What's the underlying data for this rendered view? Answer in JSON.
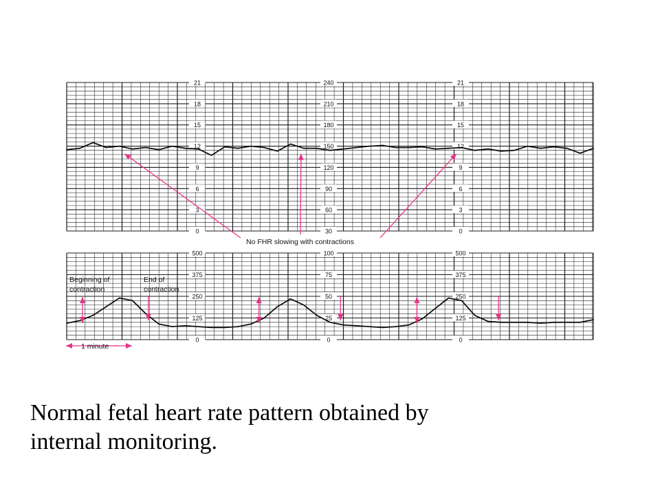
{
  "caption": {
    "line1": "Normal fetal heart rate pattern obtained by",
    "line2": "internal monitoring."
  },
  "chart_data": [
    {
      "type": "line",
      "panel": "fetal-heart-rate",
      "ylim": [
        30,
        240
      ],
      "scales": [
        {
          "name": "left",
          "ticks": [
            "21",
            "18",
            "15",
            "12",
            "9",
            "6",
            "3",
            "0"
          ]
        },
        {
          "name": "center",
          "ticks": [
            "240",
            "210",
            "180",
            "150",
            "120",
            "90",
            "60",
            "30"
          ]
        },
        {
          "name": "right",
          "ticks": [
            "21",
            "18",
            "15",
            "12",
            "9",
            "6",
            "3",
            "0"
          ]
        }
      ],
      "series": [
        {
          "x": [
            0,
            0.5,
            1,
            1.5,
            2,
            2.5,
            3,
            3.5,
            4,
            4.5,
            5,
            5.5,
            6,
            6.5,
            7,
            7.5,
            8,
            8.5,
            9,
            9.5,
            10,
            10.5,
            11,
            11.5,
            12,
            12.5,
            13,
            13.5,
            14,
            14.5,
            15,
            15.5,
            16,
            16.5,
            17,
            17.5,
            18,
            18.5,
            19,
            19.5,
            20
          ],
          "y": [
            145,
            147,
            155,
            148,
            150,
            146,
            148,
            145,
            150,
            147,
            146,
            137,
            149,
            147,
            150,
            148,
            143,
            153,
            147,
            147,
            144,
            146,
            148,
            150,
            151,
            148,
            148,
            149,
            146,
            147,
            148,
            144,
            146,
            143,
            144,
            150,
            147,
            149,
            147,
            140,
            147
          ]
        }
      ],
      "annotation": "No FHR slowing with contractions",
      "arrows_at_x": [
        2.2,
        8.9,
        14.8
      ]
    },
    {
      "type": "line",
      "panel": "uterine-contractions",
      "ylim": [
        0,
        100
      ],
      "scales": [
        {
          "name": "left",
          "ticks": [
            "500",
            "375",
            "250",
            "125",
            "0"
          ]
        },
        {
          "name": "center",
          "ticks": [
            "100",
            "75",
            "50",
            "25",
            "0"
          ]
        },
        {
          "name": "right",
          "ticks": [
            "500",
            "375",
            "250",
            "125",
            "0"
          ]
        }
      ],
      "series": [
        {
          "x": [
            0,
            0.5,
            1,
            1.5,
            2,
            2.5,
            3,
            3.5,
            4,
            4.5,
            5,
            5.5,
            6,
            6.5,
            7,
            7.5,
            8,
            8.5,
            9,
            9.5,
            10,
            10.5,
            11,
            11.5,
            12,
            12.5,
            13,
            13.5,
            14,
            14.5,
            15,
            15.5,
            16,
            16.5,
            17,
            17.5,
            18,
            18.5,
            19,
            19.5,
            20
          ],
          "y": [
            19,
            22,
            28,
            38,
            48,
            45,
            30,
            18,
            15,
            16,
            15,
            14,
            14,
            15,
            18,
            25,
            38,
            47,
            40,
            28,
            20,
            17,
            16,
            15,
            14,
            15,
            17,
            24,
            36,
            48,
            45,
            28,
            21,
            20,
            20,
            20,
            19,
            20,
            20,
            20,
            23
          ]
        }
      ],
      "annotations": [
        {
          "text_lines": [
            "Beginning of",
            "contraction"
          ]
        },
        {
          "text_lines": [
            "End of",
            "contraction"
          ]
        }
      ],
      "contraction_begin_x": [
        0.6,
        7.3,
        13.3
      ],
      "contraction_end_x": [
        3.1,
        10.4,
        16.4
      ]
    }
  ],
  "time_scale": {
    "label": "1 minute"
  },
  "colors": {
    "grid": "#1a1a1a",
    "trace": "#111111",
    "annotation": "#e8338a"
  }
}
